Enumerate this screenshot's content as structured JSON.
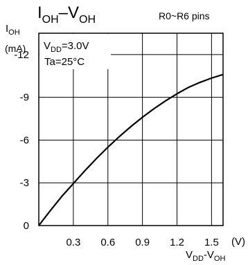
{
  "chart_data": {
    "type": "line",
    "title": {
      "main": "I",
      "main_sub": "OH",
      "dash": "–V",
      "dash_sub": "OH"
    },
    "subtitle": "R0~R6 pins",
    "ylabel": {
      "main": "I",
      "sub": "OH",
      "unit": "(mA)"
    },
    "xlabel": {
      "v1": "V",
      "sub1": "DD",
      "mid": "-V",
      "sub2": "OH"
    },
    "x_unit": "(V)",
    "annotations": [
      {
        "id": "vdd",
        "main": "V",
        "sub": "DD",
        "rest": "=3.0V"
      },
      {
        "id": "ta",
        "text": "Ta=25°C"
      }
    ],
    "xlim": [
      0,
      1.6
    ],
    "ylim": [
      0,
      -13.5
    ],
    "x_ticks": [
      0.3,
      0.6,
      0.9,
      1.2,
      1.5
    ],
    "x_tick_labels": [
      "0.3",
      "0.6",
      "0.9",
      "1.2",
      "1.5"
    ],
    "y_ticks": [
      0,
      -3,
      -6,
      -9,
      -12
    ],
    "y_tick_labels": [
      "0",
      "-3",
      "-6",
      "-9",
      "-12"
    ],
    "grid": true,
    "series": [
      {
        "x": [
          0,
          0.1,
          0.2,
          0.3,
          0.4,
          0.5,
          0.6,
          0.7,
          0.8,
          0.9,
          1.0,
          1.1,
          1.2,
          1.3,
          1.4,
          1.5,
          1.6
        ],
        "y": [
          0,
          -1.05,
          -2.05,
          -2.95,
          -3.85,
          -4.7,
          -5.5,
          -6.25,
          -6.95,
          -7.6,
          -8.2,
          -8.75,
          -9.25,
          -9.7,
          -10.05,
          -10.35,
          -10.6
        ]
      }
    ]
  }
}
